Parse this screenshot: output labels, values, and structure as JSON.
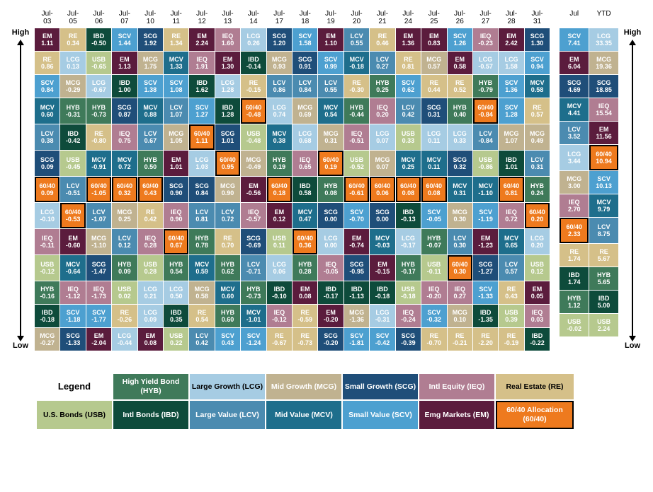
{
  "labels": {
    "high": "High",
    "low": "Low"
  },
  "colors": {
    "USB": "#b6c98e",
    "HYB": "#3f7a5a",
    "IBD": "#0e4b3b",
    "LCG": "#a6cce3",
    "LCV": "#4b8bb0",
    "MCG": "#c0b290",
    "MCV": "#1e6e8c",
    "SCG": "#1f4e79",
    "SCV": "#4da0d0",
    "IEQ": "#b07d92",
    "EM": "#5b1c3d",
    "RE": "#d5c089",
    "6040": "#ee7a1e"
  },
  "darkText": [
    "USB",
    "LCG",
    "RE"
  ],
  "header": [
    "Jul-03",
    "Jul-05",
    "Jul-06",
    "Jul-07",
    "Jul-10",
    "Jul-11",
    "Jul-12",
    "Jul-13",
    "Jul-14",
    "Jul-17",
    "Jul-18",
    "Jul-19",
    "Jul-20",
    "Jul-21",
    "Jul-24",
    "Jul-25",
    "Jul-26",
    "Jul-27",
    "Jul-28",
    "Jul-31"
  ],
  "summaryHeader": [
    "Jul",
    "YTD"
  ],
  "rows": [
    [
      [
        "EM",
        "1.11"
      ],
      [
        "RE",
        "0.34"
      ],
      [
        "IBD",
        "-0.50"
      ],
      [
        "SCV",
        "1.44"
      ],
      [
        "SCG",
        "1.92"
      ],
      [
        "RE",
        "1.34"
      ],
      [
        "EM",
        "2.24"
      ],
      [
        "IEQ",
        "1.60"
      ],
      [
        "LCG",
        "0.26"
      ],
      [
        "SCG",
        "1.20"
      ],
      [
        "SCV",
        "1.58"
      ],
      [
        "EM",
        "1.10"
      ],
      [
        "LCV",
        "0.55"
      ],
      [
        "RE",
        "0.46"
      ],
      [
        "EM",
        "1.36"
      ],
      [
        "EM",
        "0.83"
      ],
      [
        "SCV",
        "1.26"
      ],
      [
        "IEQ",
        "-0.23"
      ],
      [
        "EM",
        "2.42"
      ],
      [
        "SCG",
        "1.30"
      ]
    ],
    [
      [
        "RE",
        "0.86"
      ],
      [
        "LCG",
        "0.13"
      ],
      [
        "USB",
        "-0.65"
      ],
      [
        "EM",
        "1.13"
      ],
      [
        "MCG",
        "1.75"
      ],
      [
        "MCV",
        "1.33"
      ],
      [
        "IEQ",
        "1.91"
      ],
      [
        "EM",
        "1.30"
      ],
      [
        "IBD",
        "-0.14"
      ],
      [
        "MCG",
        "0.93"
      ],
      [
        "SCG",
        "0.91"
      ],
      [
        "SCV",
        "0.99"
      ],
      [
        "MCV",
        "-0.18"
      ],
      [
        "LCV",
        "0.27"
      ],
      [
        "RE",
        "0.81"
      ],
      [
        "MCG",
        "0.57"
      ],
      [
        "EM",
        "0.58"
      ],
      [
        "LCG",
        "-0.57"
      ],
      [
        "LCG",
        "1.58"
      ],
      [
        "SCV",
        "0.94"
      ]
    ],
    [
      [
        "SCV",
        "0.84"
      ],
      [
        "MCG",
        "-0.29"
      ],
      [
        "LCG",
        "-0.67"
      ],
      [
        "IBD",
        "1.00"
      ],
      [
        "SCV",
        "1.38"
      ],
      [
        "SCV",
        "1.08"
      ],
      [
        "IBD",
        "1.62"
      ],
      [
        "LCG",
        "1.28"
      ],
      [
        "RE",
        "-0.15"
      ],
      [
        "LCV",
        "0.86"
      ],
      [
        "LCV",
        "0.84"
      ],
      [
        "LCV",
        "0.55"
      ],
      [
        "RE",
        "-0.30"
      ],
      [
        "HYB",
        "0.25"
      ],
      [
        "SCV",
        "0.62"
      ],
      [
        "RE",
        "0.44"
      ],
      [
        "RE",
        "0.52"
      ],
      [
        "HYB",
        "-0.79"
      ],
      [
        "SCV",
        "1.36"
      ],
      [
        "MCV",
        "0.58"
      ]
    ],
    [
      [
        "MCV",
        "0.60"
      ],
      [
        "HYB",
        "-0.31"
      ],
      [
        "HYB",
        "-0.73"
      ],
      [
        "SCG",
        "0.87"
      ],
      [
        "MCV",
        "0.88"
      ],
      [
        "LCV",
        "1.07"
      ],
      [
        "SCV",
        "1.27"
      ],
      [
        "IBD",
        "1.28"
      ],
      [
        "6040",
        "-0.48"
      ],
      [
        "LCG",
        "0.74"
      ],
      [
        "MCG",
        "0.69"
      ],
      [
        "MCV",
        "0.54"
      ],
      [
        "HYB",
        "-0.44"
      ],
      [
        "IEQ",
        "0.20"
      ],
      [
        "LCV",
        "0.42"
      ],
      [
        "SCG",
        "0.31"
      ],
      [
        "HYB",
        "0.40"
      ],
      [
        "6040",
        "-0.84"
      ],
      [
        "SCV",
        "1.28"
      ],
      [
        "RE",
        "0.57"
      ]
    ],
    [
      [
        "LCV",
        "0.38"
      ],
      [
        "IBD",
        "-0.42"
      ],
      [
        "RE",
        "-0.80"
      ],
      [
        "IEQ",
        "0.75"
      ],
      [
        "LCV",
        "0.67"
      ],
      [
        "MCG",
        "1.05"
      ],
      [
        "6040",
        "1.11"
      ],
      [
        "SCG",
        "1.01"
      ],
      [
        "USB",
        "-0.48"
      ],
      [
        "MCV",
        "0.38"
      ],
      [
        "LCG",
        "0.68"
      ],
      [
        "MCG",
        "0.31"
      ],
      [
        "IEQ",
        "-0.51"
      ],
      [
        "LCG",
        "0.07"
      ],
      [
        "USB",
        "0.33"
      ],
      [
        "LCG",
        "0.11"
      ],
      [
        "LCG",
        "0.33"
      ],
      [
        "LCV",
        "-0.84"
      ],
      [
        "MCG",
        "1.07"
      ],
      [
        "MCG",
        "0.49"
      ]
    ],
    [
      [
        "SCG",
        "0.09"
      ],
      [
        "USB",
        "-0.45"
      ],
      [
        "MCV",
        "-0.91"
      ],
      [
        "MCV",
        "0.72"
      ],
      [
        "HYB",
        "0.50"
      ],
      [
        "EM",
        "1.01"
      ],
      [
        "LCG",
        "1.03"
      ],
      [
        "6040",
        "0.95"
      ],
      [
        "MCG",
        "-0.49"
      ],
      [
        "HYB",
        "0.19"
      ],
      [
        "IEQ",
        "0.65"
      ],
      [
        "6040",
        "0.19"
      ],
      [
        "USB",
        "-0.52"
      ],
      [
        "MCG",
        "0.07"
      ],
      [
        "MCV",
        "0.25"
      ],
      [
        "MCV",
        "0.11"
      ],
      [
        "SCG",
        "0.32"
      ],
      [
        "USB",
        "-0.86"
      ],
      [
        "IBD",
        "1.01"
      ],
      [
        "LCV",
        "0.31"
      ]
    ],
    [
      [
        "6040",
        "0.09"
      ],
      [
        "LCV",
        "-0.51"
      ],
      [
        "6040",
        "-1.05"
      ],
      [
        "6040",
        "0.32"
      ],
      [
        "6040",
        "0.43"
      ],
      [
        "SCG",
        "0.90"
      ],
      [
        "SCG",
        "0.84"
      ],
      [
        "MCG",
        "0.90"
      ],
      [
        "EM",
        "-0.56"
      ],
      [
        "6040",
        "0.18"
      ],
      [
        "IBD",
        "0.58"
      ],
      [
        "HYB",
        "0.08"
      ],
      [
        "6040",
        "-0.61"
      ],
      [
        "6040",
        "0.06"
      ],
      [
        "6040",
        "0.08"
      ],
      [
        "6040",
        "0.08"
      ],
      [
        "MCV",
        "0.31"
      ],
      [
        "MCV",
        "-1.10"
      ],
      [
        "6040",
        "0.81"
      ],
      [
        "HYB",
        "0.24"
      ]
    ],
    [
      [
        "LCG",
        "-0.10"
      ],
      [
        "6040",
        "-0.53"
      ],
      [
        "LCV",
        "-1.07"
      ],
      [
        "MCG",
        "0.25"
      ],
      [
        "RE",
        "0.42"
      ],
      [
        "IEQ",
        "0.90"
      ],
      [
        "LCV",
        "0.81"
      ],
      [
        "LCV",
        "0.72"
      ],
      [
        "IEQ",
        "-0.57"
      ],
      [
        "EM",
        "0.12"
      ],
      [
        "MCV",
        "0.47"
      ],
      [
        "SCG",
        "0.00"
      ],
      [
        "SCV",
        "-0.70"
      ],
      [
        "SCG",
        "0.00"
      ],
      [
        "IBD",
        "-0.13"
      ],
      [
        "SCV",
        "-0.05"
      ],
      [
        "MCG",
        "0.30"
      ],
      [
        "SCV",
        "-1.19"
      ],
      [
        "IEQ",
        "0.72"
      ],
      [
        "6040",
        "0.20"
      ]
    ],
    [
      [
        "IEQ",
        "-0.11"
      ],
      [
        "EM",
        "-0.60"
      ],
      [
        "MCG",
        "-1.10"
      ],
      [
        "LCV",
        "0.12"
      ],
      [
        "IEQ",
        "0.28"
      ],
      [
        "6040",
        "0.67"
      ],
      [
        "HYB",
        "0.78"
      ],
      [
        "RE",
        "0.70"
      ],
      [
        "SCG",
        "-0.69"
      ],
      [
        "USB",
        "0.11"
      ],
      [
        "6040",
        "0.36"
      ],
      [
        "LCG",
        "0.00"
      ],
      [
        "EM",
        "-0.74"
      ],
      [
        "MCV",
        "-0.03"
      ],
      [
        "LCG",
        "-0.17"
      ],
      [
        "HYB",
        "-0.07"
      ],
      [
        "LCV",
        "0.30"
      ],
      [
        "EM",
        "-1.23"
      ],
      [
        "MCV",
        "0.65"
      ],
      [
        "LCG",
        "0.20"
      ]
    ],
    [
      [
        "USB",
        "-0.12"
      ],
      [
        "MCV",
        "-0.64"
      ],
      [
        "SCG",
        "-1.47"
      ],
      [
        "HYB",
        "0.09"
      ],
      [
        "USB",
        "0.28"
      ],
      [
        "HYB",
        "0.54"
      ],
      [
        "MCV",
        "0.59"
      ],
      [
        "HYB",
        "0.62"
      ],
      [
        "LCV",
        "-0.71"
      ],
      [
        "LCG",
        "0.06"
      ],
      [
        "HYB",
        "0.28"
      ],
      [
        "IEQ",
        "-0.05"
      ],
      [
        "SCG",
        "-0.95"
      ],
      [
        "EM",
        "-0.15"
      ],
      [
        "HYB",
        "-0.17"
      ],
      [
        "USB",
        "-0.11"
      ],
      [
        "6040",
        "0.30"
      ],
      [
        "SCG",
        "-1.27"
      ],
      [
        "LCV",
        "0.57"
      ],
      [
        "USB",
        "0.12"
      ]
    ],
    [
      [
        "HYB",
        "-0.16"
      ],
      [
        "IEQ",
        "-1.12"
      ],
      [
        "IEQ",
        "-1.73"
      ],
      [
        "USB",
        "0.02"
      ],
      [
        "LCG",
        "0.21"
      ],
      [
        "LCG",
        "0.50"
      ],
      [
        "MCG",
        "0.58"
      ],
      [
        "MCV",
        "0.60"
      ],
      [
        "HYB",
        "-0.73"
      ],
      [
        "IBD",
        "-0.10"
      ],
      [
        "EM",
        "0.08"
      ],
      [
        "IBD",
        "-0.17"
      ],
      [
        "IBD",
        "-1.13"
      ],
      [
        "IBD",
        "-0.18"
      ],
      [
        "USB",
        "-0.18"
      ],
      [
        "IEQ",
        "-0.20"
      ],
      [
        "IEQ",
        "0.27"
      ],
      [
        "SCV",
        "-1.33"
      ],
      [
        "RE",
        "0.43"
      ],
      [
        "EM",
        "0.05"
      ]
    ],
    [
      [
        "IBD",
        "-0.18"
      ],
      [
        "SCV",
        "-1.18"
      ],
      [
        "SCV",
        "-1.77"
      ],
      [
        "RE",
        "-0.26"
      ],
      [
        "LCG",
        "0.09"
      ],
      [
        "IBD",
        "0.35"
      ],
      [
        "RE",
        "0.54"
      ],
      [
        "HYB",
        "0.60"
      ],
      [
        "MCV",
        "-1.01"
      ],
      [
        "IEQ",
        "-0.12"
      ],
      [
        "RE",
        "-0.59"
      ],
      [
        "EM",
        "-0.20"
      ],
      [
        "MCG",
        "-1.36"
      ],
      [
        "LCG",
        "-0.31"
      ],
      [
        "IEQ",
        "-0.24"
      ],
      [
        "SCV",
        "-0.32"
      ],
      [
        "MCG",
        "0.10"
      ],
      [
        "IBD",
        "-1.35"
      ],
      [
        "USB",
        "0.39"
      ],
      [
        "IEQ",
        "0.03"
      ]
    ],
    [
      [
        "MCG",
        "-0.27"
      ],
      [
        "SCG",
        "-1.33"
      ],
      [
        "EM",
        "-2.04"
      ],
      [
        "LCG",
        "-0.44"
      ],
      [
        "EM",
        "0.08"
      ],
      [
        "USB",
        "0.22"
      ],
      [
        "LCV",
        "0.42"
      ],
      [
        "SCV",
        "0.43"
      ],
      [
        "SCV",
        "-1.24"
      ],
      [
        "RE",
        "-0.67"
      ],
      [
        "RE",
        "-0.73"
      ],
      [
        "SCG",
        "-0.20"
      ],
      [
        "SCV",
        "-1.81"
      ],
      [
        "SCV",
        "-0.42"
      ],
      [
        "SCG",
        "-0.39"
      ],
      [
        "RE",
        "-0.70"
      ],
      [
        "RE",
        "-0.21"
      ],
      [
        "RE",
        "-2.20"
      ],
      [
        "RE",
        "-0.19"
      ],
      [
        "IBD",
        "-0.22"
      ]
    ]
  ],
  "summary": [
    [
      [
        "SCV",
        "7.41"
      ],
      [
        "LCG",
        "33.35"
      ]
    ],
    [
      [
        "EM",
        "6.04"
      ],
      [
        "MCG",
        "19.36"
      ]
    ],
    [
      [
        "SCG",
        "4.69"
      ],
      [
        "SCG",
        "18.85"
      ]
    ],
    [
      [
        "MCV",
        "4.41"
      ],
      [
        "IEQ",
        "15.54"
      ]
    ],
    [
      [
        "LCV",
        "3.52"
      ],
      [
        "EM",
        "11.56"
      ]
    ],
    [
      [
        "LCG",
        "3.44"
      ],
      [
        "6040",
        "10.94"
      ]
    ],
    [
      [
        "MCG",
        "3.00"
      ],
      [
        "SCV",
        "10.13"
      ]
    ],
    [
      [
        "IEQ",
        "2.70"
      ],
      [
        "MCV",
        "9.79"
      ]
    ],
    [
      [
        "6040",
        "2.33"
      ],
      [
        "LCV",
        "8.75"
      ]
    ],
    [
      [
        "RE",
        "1.74"
      ],
      [
        "RE",
        "5.67"
      ]
    ],
    [
      [
        "IBD",
        "1.74"
      ],
      [
        "HYB",
        "5.65"
      ]
    ],
    [
      [
        "HYB",
        "1.12"
      ],
      [
        "IBD",
        "5.00"
      ]
    ],
    [
      [
        "USB",
        "-0.02"
      ],
      [
        "USB",
        "2.24"
      ]
    ]
  ],
  "legend": {
    "title": "Legend",
    "rows": [
      [
        null,
        [
          "HYB",
          "High Yield Bond (HYB)"
        ],
        [
          "LCG",
          "Large Growth (LCG)"
        ],
        [
          "MCG",
          "Mid Growth (MCG)"
        ],
        [
          "SCG",
          "Small Growth (SCG)"
        ],
        [
          "IEQ",
          "Intl Equity (IEQ)"
        ],
        [
          "RE",
          "Real Estate (RE)"
        ]
      ],
      [
        [
          "USB",
          "U.S. Bonds (USB)"
        ],
        [
          "IBD",
          "Intl Bonds (IBD)"
        ],
        [
          "LCV",
          "Large Value (LCV)"
        ],
        [
          "MCV",
          "Mid Value (MCV)"
        ],
        [
          "SCV",
          "Small Value (SCV)"
        ],
        [
          "EM",
          "Emg Markets (EM)"
        ],
        [
          "6040",
          "60/40 Allocation (60/40)"
        ]
      ]
    ]
  }
}
